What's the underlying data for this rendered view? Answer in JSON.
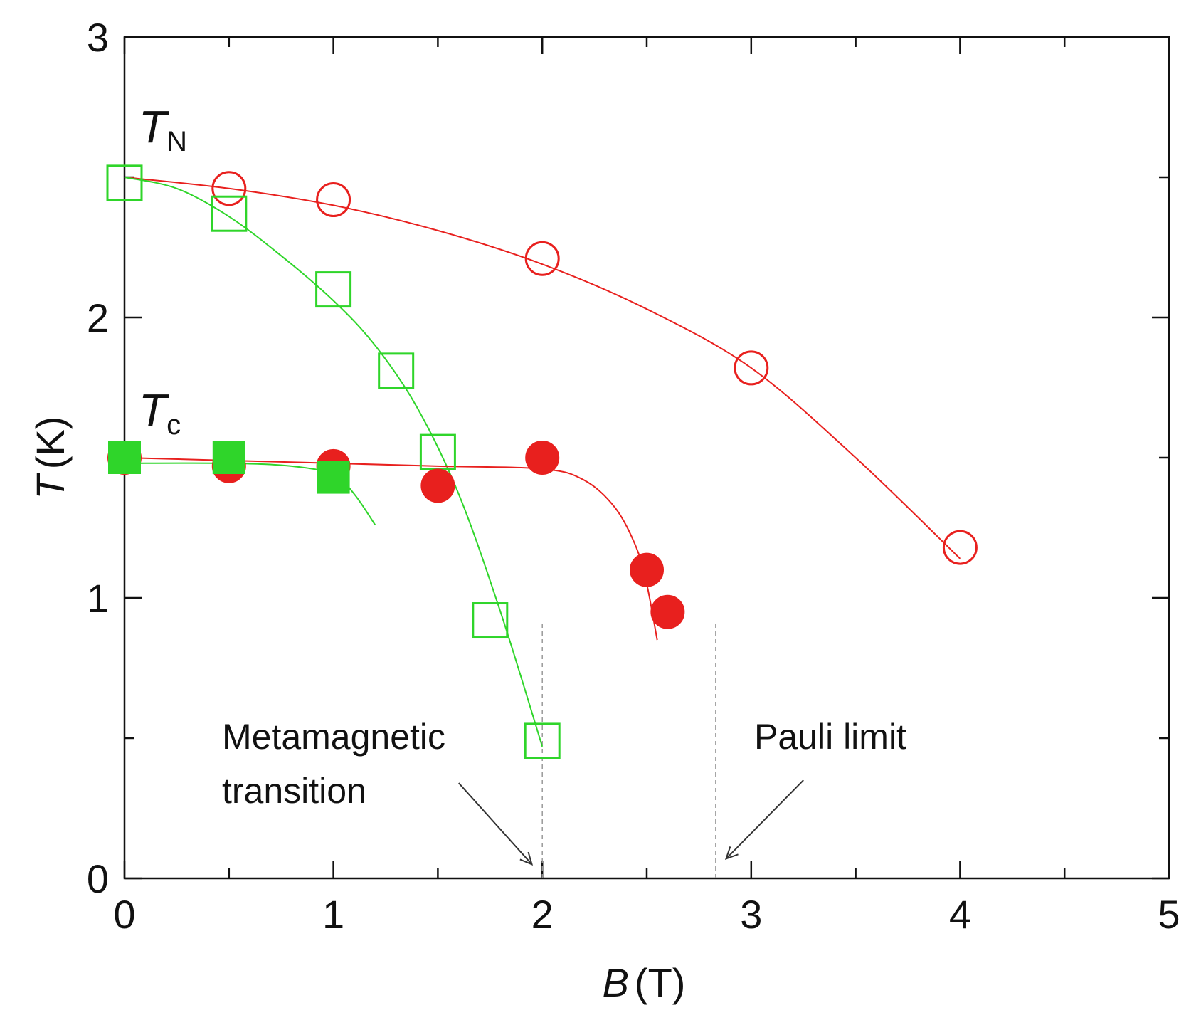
{
  "chart_data": {
    "type": "scatter",
    "xlabel_var": "B",
    "xlabel_unit": "(T)",
    "ylabel_var": "T",
    "ylabel_unit": "(K)",
    "xlim": [
      0,
      5
    ],
    "ylim": [
      0,
      3
    ],
    "xticks": [
      0,
      1,
      2,
      3,
      4,
      5
    ],
    "yticks": [
      0,
      1,
      2,
      3
    ],
    "xtick_labels": [
      "0",
      "1",
      "2",
      "3",
      "4",
      "5"
    ],
    "ytick_labels": [
      "0",
      "1",
      "2",
      "3"
    ],
    "labels": {
      "tn_main": "T",
      "tn_sub": "N",
      "tc_main": "T",
      "tc_sub": "c"
    },
    "series": [
      {
        "name": "TN open circles",
        "marker": "open-circle",
        "color": "#e8201e",
        "x": [
          0.5,
          1.0,
          2.0,
          3.0,
          4.0
        ],
        "y": [
          2.46,
          2.42,
          2.21,
          1.82,
          1.18
        ]
      },
      {
        "name": "TN open squares",
        "marker": "open-square",
        "color": "#2fd52a",
        "x": [
          0.0,
          0.5,
          1.0,
          1.3,
          1.5,
          1.75,
          2.0
        ],
        "y": [
          2.48,
          2.37,
          2.1,
          1.81,
          1.52,
          0.92,
          0.49
        ]
      },
      {
        "name": "Tc filled circles",
        "marker": "filled-circle",
        "color": "#e8201e",
        "x": [
          0.0,
          0.5,
          1.0,
          1.5,
          2.0,
          2.5,
          2.6
        ],
        "y": [
          1.5,
          1.47,
          1.47,
          1.4,
          1.5,
          1.1,
          0.95
        ]
      },
      {
        "name": "Tc filled squares",
        "marker": "filled-square",
        "color": "#2fd52a",
        "x": [
          0.0,
          0.5,
          1.0
        ],
        "y": [
          1.5,
          1.5,
          1.43
        ]
      }
    ],
    "curves": [
      {
        "name": "TN red guide",
        "color": "#e8201e",
        "x": [
          0,
          0.5,
          1.0,
          1.5,
          2.0,
          2.5,
          3.0,
          3.5,
          4.0
        ],
        "y": [
          2.5,
          2.46,
          2.4,
          2.31,
          2.19,
          2.03,
          1.82,
          1.5,
          1.14
        ]
      },
      {
        "name": "TN green guide",
        "color": "#2fd52a",
        "x": [
          0,
          0.25,
          0.5,
          0.75,
          1.0,
          1.2,
          1.4,
          1.6,
          1.8,
          2.0
        ],
        "y": [
          2.5,
          2.46,
          2.36,
          2.22,
          2.06,
          1.9,
          1.68,
          1.37,
          0.95,
          0.47
        ]
      },
      {
        "name": "Tc red guide",
        "color": "#e8201e",
        "x": [
          0,
          0.5,
          1.0,
          1.5,
          2.0,
          2.2,
          2.35,
          2.45,
          2.5,
          2.55
        ],
        "y": [
          1.5,
          1.49,
          1.48,
          1.47,
          1.46,
          1.42,
          1.32,
          1.18,
          1.05,
          0.85
        ]
      },
      {
        "name": "Tc green guide",
        "color": "#2fd52a",
        "x": [
          0,
          0.5,
          0.8,
          1.0,
          1.1,
          1.2
        ],
        "y": [
          1.48,
          1.48,
          1.47,
          1.44,
          1.37,
          1.26
        ]
      }
    ],
    "vlines": [
      {
        "name": "metamagnetic-line",
        "x": 2.0,
        "y_range": [
          0,
          0.92
        ]
      },
      {
        "name": "pauli-line",
        "x": 2.83,
        "y_range": [
          0,
          0.92
        ]
      }
    ],
    "annotations": [
      {
        "name": "metamagnetic-annotation",
        "lines": [
          "Metamagnetic",
          "transition"
        ],
        "arrow_from": [
          1.6,
          0.34
        ],
        "arrow_to": [
          1.95,
          0.05
        ]
      },
      {
        "name": "pauli-annotation",
        "lines": [
          "Pauli limit"
        ],
        "arrow_from": [
          3.25,
          0.35
        ],
        "arrow_to": [
          2.88,
          0.07
        ]
      }
    ]
  }
}
